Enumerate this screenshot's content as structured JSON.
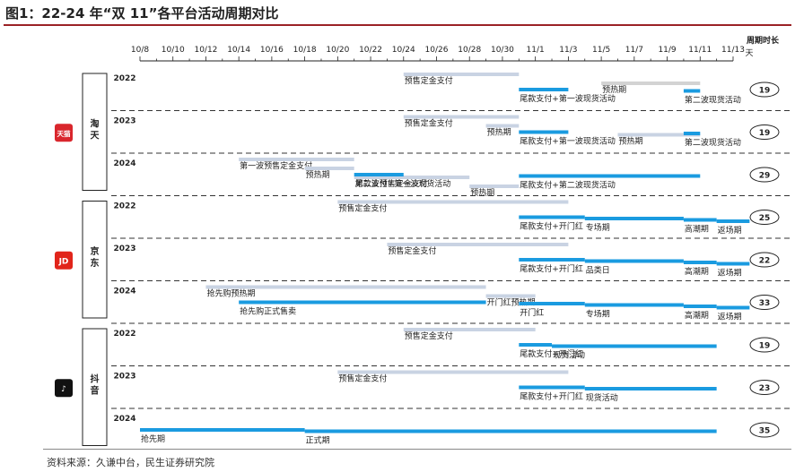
{
  "title": "图1：22-24 年“双 11”各平台活动周期对比",
  "source": "资料来源：久谦中台，民生证券研究院",
  "duration_header": "周期时长",
  "duration_unit": "天",
  "colors": {
    "light": "#c9d3e3",
    "blue": "#1a9be0",
    "grey": "#d3d3d3"
  },
  "chart_data": {
    "type": "gantt",
    "x_ticks": [
      "10/8",
      "10/10",
      "10/12",
      "10/14",
      "10/16",
      "10/18",
      "10/20",
      "10/22",
      "10/24",
      "10/26",
      "10/28",
      "10/30",
      "11/1",
      "11/3",
      "11/5",
      "11/7",
      "11/9",
      "11/11",
      "11/13"
    ],
    "platforms": [
      {
        "name": "淘天",
        "logo": "天猫",
        "logo_color": "#d9262c",
        "years": [
          {
            "year": "2022",
            "duration": "19",
            "bars": [
              {
                "label": "预售定金支付",
                "start": "10/24",
                "end": "10/31",
                "kind": "light"
              },
              {
                "label": "尾款支付+第一波现货活动",
                "start": "10/31",
                "end": "11/3",
                "kind": "blue"
              },
              {
                "label": "预热期",
                "start": "11/5",
                "end": "11/11",
                "kind": "grey"
              },
              {
                "label": "第二波现货活动",
                "start": "11/10",
                "end": "11/11",
                "kind": "blue"
              }
            ]
          },
          {
            "year": "2023",
            "duration": "19",
            "bars": [
              {
                "label": "预售定金支付",
                "start": "10/24",
                "end": "10/31",
                "kind": "light"
              },
              {
                "label": "预热期",
                "start": "10/29",
                "end": "10/31",
                "kind": "light"
              },
              {
                "label": "尾款支付+第一波现货活动",
                "start": "10/31",
                "end": "11/3",
                "kind": "blue"
              },
              {
                "label": "预热期",
                "start": "11/6",
                "end": "11/11",
                "kind": "light"
              },
              {
                "label": "第二波现货活动",
                "start": "11/10",
                "end": "11/11",
                "kind": "blue"
              }
            ]
          },
          {
            "year": "2024",
            "duration": "29",
            "bars": [
              {
                "label": "第一波预售定金支付",
                "start": "10/14",
                "end": "10/21",
                "kind": "light"
              },
              {
                "label": "预热期",
                "start": "10/18",
                "end": "10/21",
                "kind": "light"
              },
              {
                "label": "第二波预售定金支付",
                "start": "10/21",
                "end": "10/28",
                "kind": "light"
              },
              {
                "label": "尾款支付+第一波现货活动",
                "start": "10/21",
                "end": "10/24",
                "kind": "blue"
              },
              {
                "label": "预热期",
                "start": "10/28",
                "end": "10/31",
                "kind": "light"
              },
              {
                "label": "尾款支付+第二波现货活动",
                "start": "10/31",
                "end": "11/11",
                "kind": "blue"
              }
            ]
          }
        ]
      },
      {
        "name": "京东",
        "logo": "JD",
        "logo_color": "#e1251b",
        "years": [
          {
            "year": "2022",
            "duration": "25",
            "bars": [
              {
                "label": "预售定金支付",
                "start": "10/20",
                "end": "11/3",
                "kind": "light"
              },
              {
                "label": "尾款支付+开门红",
                "start": "10/31",
                "end": "11/4",
                "kind": "blue"
              },
              {
                "label": "专场期",
                "start": "11/4",
                "end": "11/10",
                "kind": "blue"
              },
              {
                "label": "高潮期",
                "start": "11/10",
                "end": "11/12",
                "kind": "blue"
              },
              {
                "label": "返场期",
                "start": "11/12",
                "end": "11/14",
                "kind": "blue"
              }
            ]
          },
          {
            "year": "2023",
            "duration": "22",
            "bars": [
              {
                "label": "预售定金支付",
                "start": "10/23",
                "end": "11/3",
                "kind": "light"
              },
              {
                "label": "尾款支付+开门红",
                "start": "10/31",
                "end": "11/4",
                "kind": "blue"
              },
              {
                "label": "品类日",
                "start": "11/4",
                "end": "11/10",
                "kind": "blue"
              },
              {
                "label": "高潮期",
                "start": "11/10",
                "end": "11/12",
                "kind": "blue"
              },
              {
                "label": "返场期",
                "start": "11/12",
                "end": "11/14",
                "kind": "blue"
              }
            ]
          },
          {
            "year": "2024",
            "duration": "33",
            "bars": [
              {
                "label": "抢先购预热期",
                "start": "10/12",
                "end": "10/29",
                "kind": "light"
              },
              {
                "label": "抢先购正式售卖",
                "start": "10/14",
                "end": "10/29",
                "kind": "blue"
              },
              {
                "label": "开门红预热期",
                "start": "10/29",
                "end": "11/1",
                "kind": "light"
              },
              {
                "label": "开门红",
                "start": "10/31",
                "end": "11/4",
                "kind": "blue"
              },
              {
                "label": "专场期",
                "start": "11/4",
                "end": "11/10",
                "kind": "blue"
              },
              {
                "label": "高潮期",
                "start": "11/10",
                "end": "11/12",
                "kind": "blue"
              },
              {
                "label": "返场期",
                "start": "11/12",
                "end": "11/14",
                "kind": "blue"
              }
            ]
          }
        ]
      },
      {
        "name": "抖音",
        "logo": "♪",
        "logo_color": "#111111",
        "years": [
          {
            "year": "2022",
            "duration": "19",
            "bars": [
              {
                "label": "预售定金支付",
                "start": "10/24",
                "end": "11/1",
                "kind": "light"
              },
              {
                "label": "尾款支付+开门红",
                "start": "10/31",
                "end": "11/2",
                "kind": "blue"
              },
              {
                "label": "现货活动",
                "start": "11/2",
                "end": "11/12",
                "kind": "blue"
              }
            ]
          },
          {
            "year": "2023",
            "duration": "23",
            "bars": [
              {
                "label": "预售定金支付",
                "start": "10/20",
                "end": "11/3",
                "kind": "light"
              },
              {
                "label": "尾款支付+开门红",
                "start": "10/31",
                "end": "11/4",
                "kind": "blue"
              },
              {
                "label": "现货活动",
                "start": "11/4",
                "end": "11/12",
                "kind": "blue"
              }
            ]
          },
          {
            "year": "2024",
            "duration": "35",
            "bars": [
              {
                "label": "抢先期",
                "start": "10/8",
                "end": "10/18",
                "kind": "blue"
              },
              {
                "label": "正式期",
                "start": "10/18",
                "end": "11/12",
                "kind": "blue"
              }
            ]
          }
        ]
      }
    ]
  }
}
